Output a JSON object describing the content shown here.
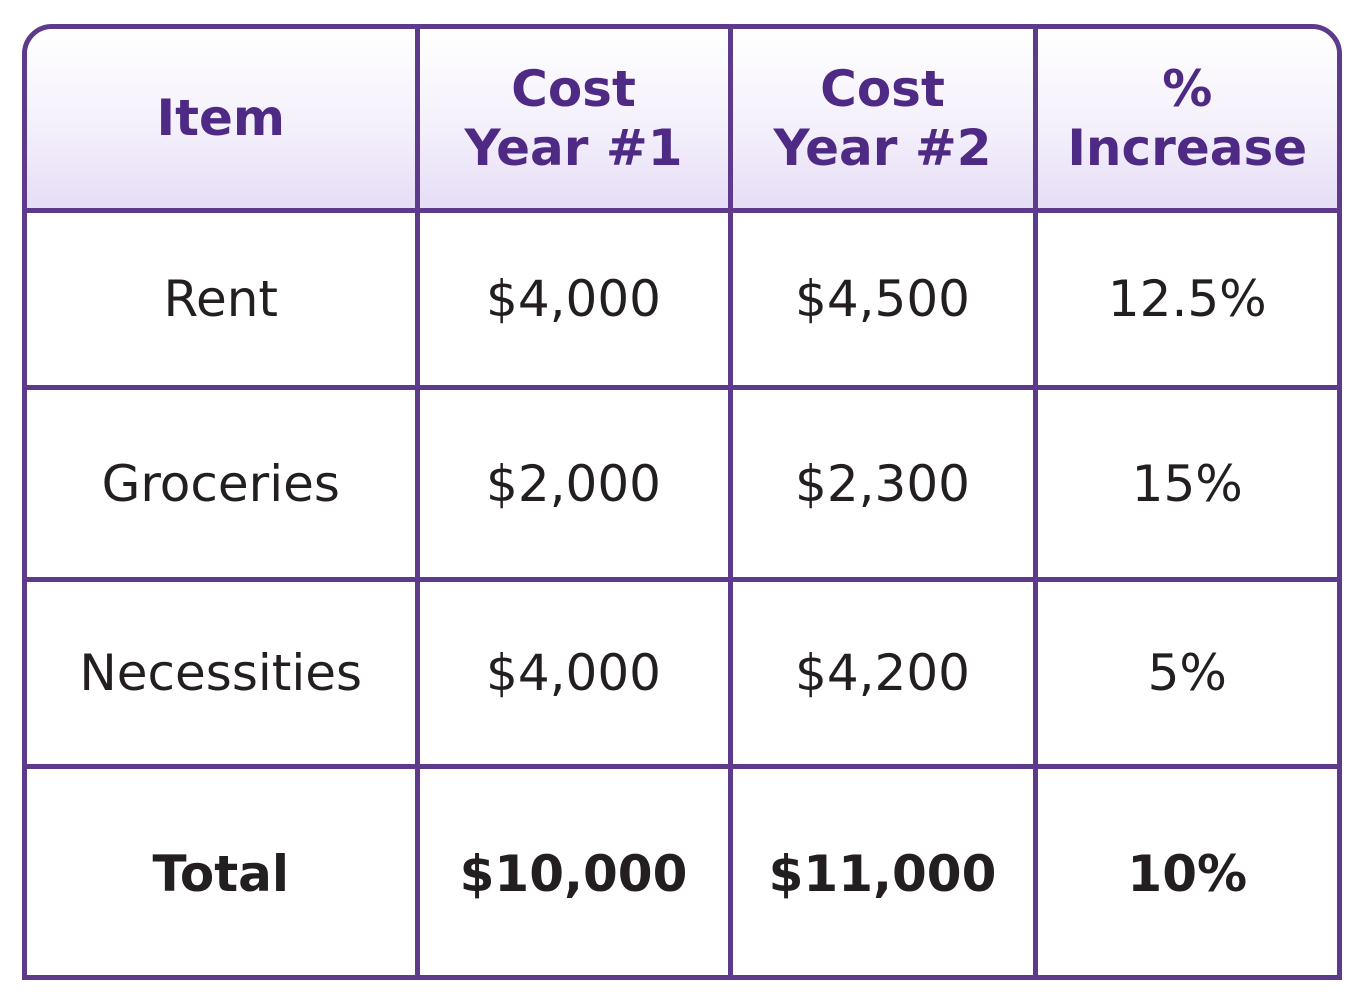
{
  "chart_data": {
    "type": "table",
    "columns": [
      {
        "line1": "Item"
      },
      {
        "line1": "Cost",
        "line2": "Year #1"
      },
      {
        "line1": "Cost",
        "line2": "Year #2"
      },
      {
        "line1": "%",
        "line2": "Increase"
      }
    ],
    "rows": [
      {
        "item": "Rent",
        "year1": "$4,000",
        "year2": "$4,500",
        "increase": "12.5%"
      },
      {
        "item": "Groceries",
        "year1": "$2,000",
        "year2": "$2,300",
        "increase": "15%"
      },
      {
        "item": "Necessities",
        "year1": "$4,000",
        "year2": "$4,200",
        "increase": "5%"
      }
    ],
    "total": {
      "item": "Total",
      "year1": "$10,000",
      "year2": "$11,000",
      "increase": "10%"
    }
  },
  "colors": {
    "border": "#5e3a8c",
    "header_text": "#4f2a85",
    "body_text": "#231f20"
  }
}
